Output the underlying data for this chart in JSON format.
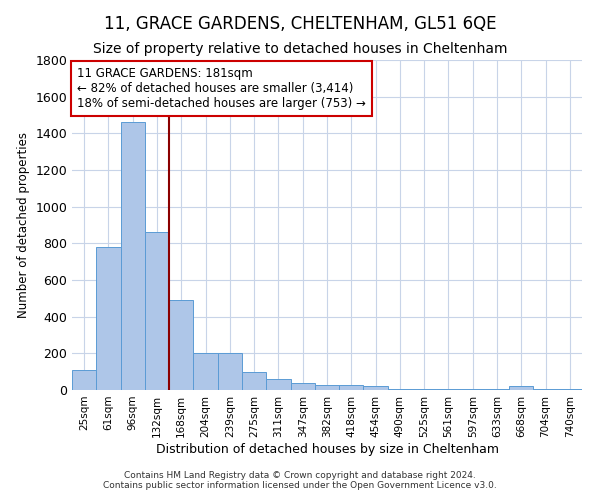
{
  "title": "11, GRACE GARDENS, CHELTENHAM, GL51 6QE",
  "subtitle": "Size of property relative to detached houses in Cheltenham",
  "xlabel": "Distribution of detached houses by size in Cheltenham",
  "ylabel": "Number of detached properties",
  "footer_line1": "Contains HM Land Registry data © Crown copyright and database right 2024.",
  "footer_line2": "Contains public sector information licensed under the Open Government Licence v3.0.",
  "categories": [
    "25sqm",
    "61sqm",
    "96sqm",
    "132sqm",
    "168sqm",
    "204sqm",
    "239sqm",
    "275sqm",
    "311sqm",
    "347sqm",
    "382sqm",
    "418sqm",
    "454sqm",
    "490sqm",
    "525sqm",
    "561sqm",
    "597sqm",
    "633sqm",
    "668sqm",
    "704sqm",
    "740sqm"
  ],
  "values": [
    110,
    780,
    1460,
    860,
    490,
    200,
    200,
    100,
    60,
    40,
    30,
    30,
    20,
    5,
    5,
    5,
    5,
    5,
    20,
    5,
    5
  ],
  "bar_color": "#aec6e8",
  "bar_edge_color": "#5b9bd5",
  "grid_color": "#c8d4e8",
  "property_line_color": "#8b0000",
  "annotation_text_line1": "11 GRACE GARDENS: 181sqm",
  "annotation_text_line2": "← 82% of detached houses are smaller (3,414)",
  "annotation_text_line3": "18% of semi-detached houses are larger (753) →",
  "annotation_box_color": "#cc0000",
  "ylim": [
    0,
    1800
  ],
  "yticks": [
    0,
    200,
    400,
    600,
    800,
    1000,
    1200,
    1400,
    1600,
    1800
  ],
  "background_color": "#ffffff",
  "title_fontsize": 12,
  "subtitle_fontsize": 10,
  "property_line_index": 3.5
}
